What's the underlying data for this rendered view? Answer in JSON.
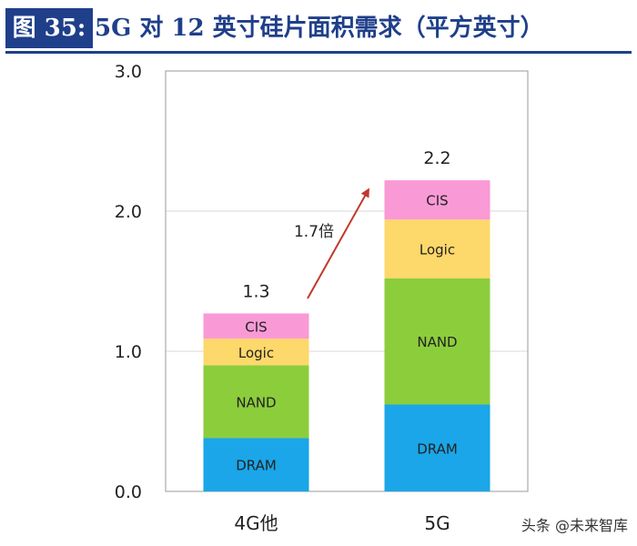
{
  "header": {
    "figure_label": "图 35:",
    "title": "5G 对 12 英寸硅片面积需求（平方英寸）"
  },
  "chart_data": {
    "type": "bar",
    "stacked": true,
    "categories": [
      "4G他",
      "5G"
    ],
    "series": [
      {
        "name": "DRAM",
        "values": [
          0.38,
          0.62
        ],
        "color": "#1aa6e8"
      },
      {
        "name": "NAND",
        "values": [
          0.52,
          0.9
        ],
        "color": "#8ccd3c"
      },
      {
        "name": "Logic",
        "values": [
          0.19,
          0.42
        ],
        "color": "#fdd86a"
      },
      {
        "name": "CIS",
        "values": [
          0.18,
          0.28
        ],
        "color": "#f99ad6"
      }
    ],
    "totals_labels": [
      "1.3",
      "2.2"
    ],
    "ylim": [
      0,
      3.0
    ],
    "yticks": [
      "0.0",
      "1.0",
      "2.0",
      "3.0"
    ],
    "grid": true,
    "annotation": {
      "text": "1.7倍",
      "color": "#c0392b"
    }
  },
  "watermark": "头条 @未来智库"
}
